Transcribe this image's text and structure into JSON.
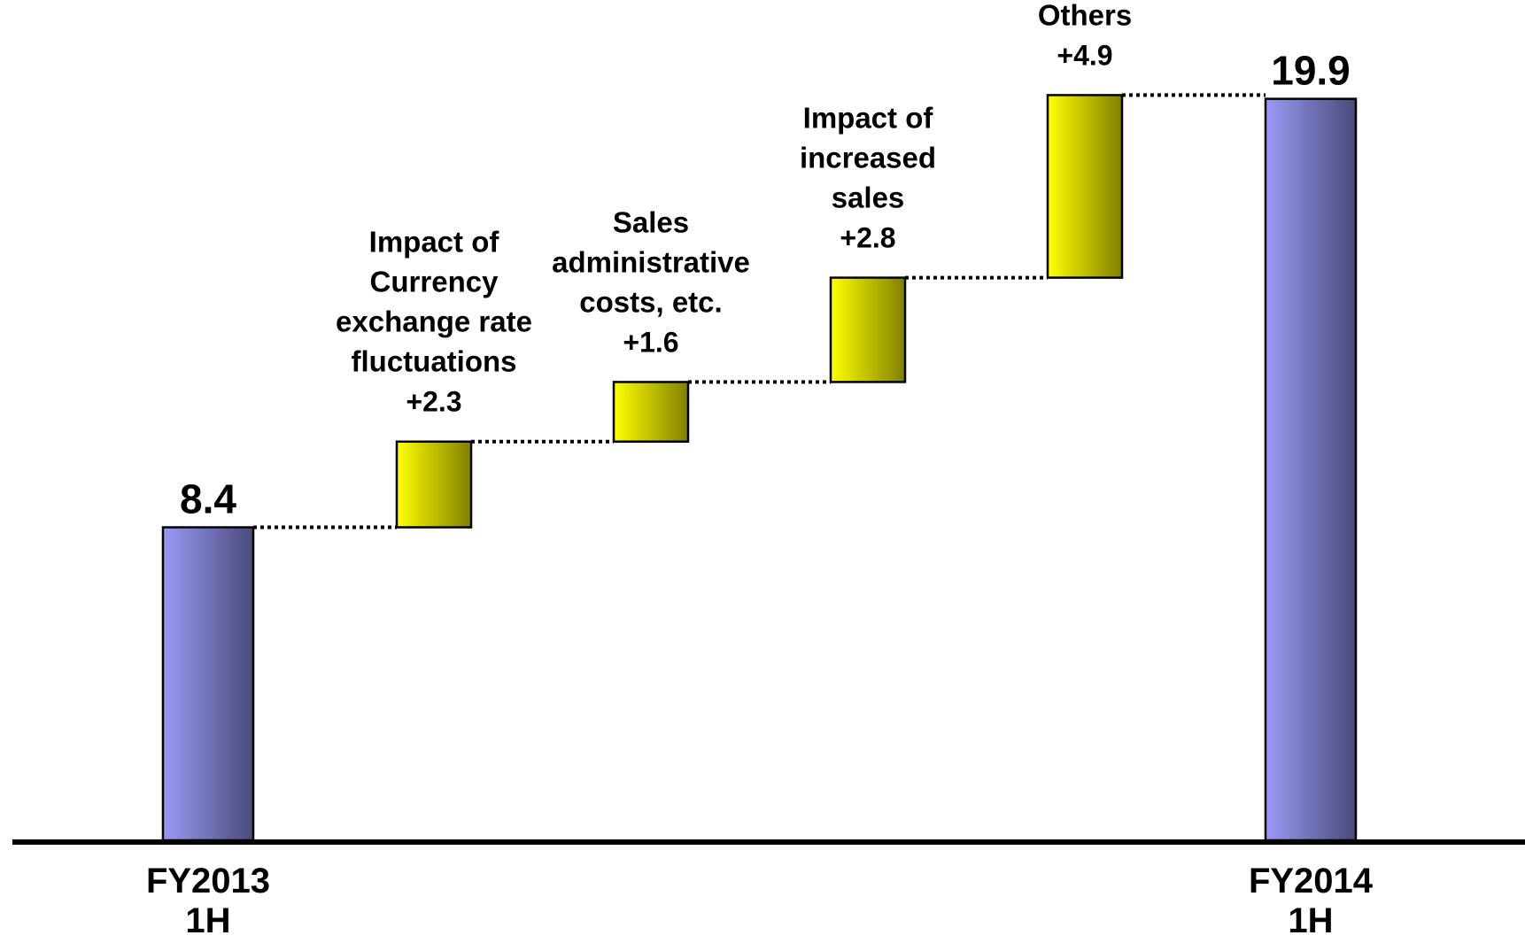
{
  "chart_data": {
    "type": "bar",
    "subtype": "waterfall",
    "title": "",
    "xlabel": "",
    "ylabel": "",
    "ylim": [
      0,
      21.5
    ],
    "grid": false,
    "legend": "none",
    "colors": {
      "total_light": "#9a9af5",
      "total_dark": "#4a4a7a",
      "change_light": "#ffff00",
      "change_dark": "#808000",
      "axis": "#000000"
    },
    "bars": [
      {
        "kind": "total",
        "label_lines": [
          "FY2013",
          "1H"
        ],
        "value": 8.4,
        "value_label": "8.4"
      },
      {
        "kind": "increase",
        "label_lines": [
          "Impact of",
          "Currency",
          "exchange rate",
          "fluctuations"
        ],
        "value": 2.3,
        "value_label": "+2.3"
      },
      {
        "kind": "increase",
        "label_lines": [
          "Sales",
          "administrative",
          "costs, etc."
        ],
        "value": 1.6,
        "value_label": "+1.6"
      },
      {
        "kind": "increase",
        "label_lines": [
          "Impact of",
          "increased",
          "sales"
        ],
        "value": 2.8,
        "value_label": "+2.8"
      },
      {
        "kind": "increase",
        "label_lines": [
          "Others"
        ],
        "value": 4.9,
        "value_label": "+4.9"
      },
      {
        "kind": "total",
        "label_lines": [
          "FY2014",
          "1H"
        ],
        "value": 19.9,
        "value_label": "19.9"
      }
    ]
  }
}
